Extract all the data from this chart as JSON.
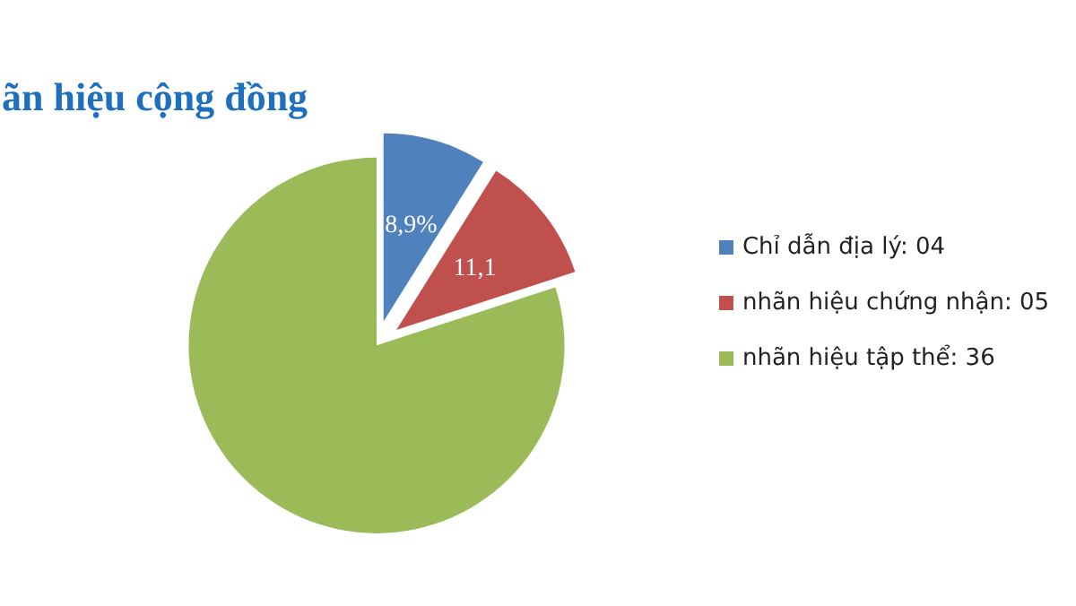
{
  "chart_data": {
    "type": "pie",
    "title": "ãn hiệu cộng đồng",
    "categories": [
      "Chỉ dẫn địa lý: 04",
      "nhãn hiệu chứng nhận: 05",
      "nhãn hiệu tập thể: 36"
    ],
    "values": [
      8.9,
      11.1,
      80
    ],
    "colors": [
      "#4f81bd",
      "#c0504d",
      "#9bbb59"
    ],
    "value_labels": [
      "8,9%",
      "11,1",
      null
    ],
    "legend": "right"
  }
}
